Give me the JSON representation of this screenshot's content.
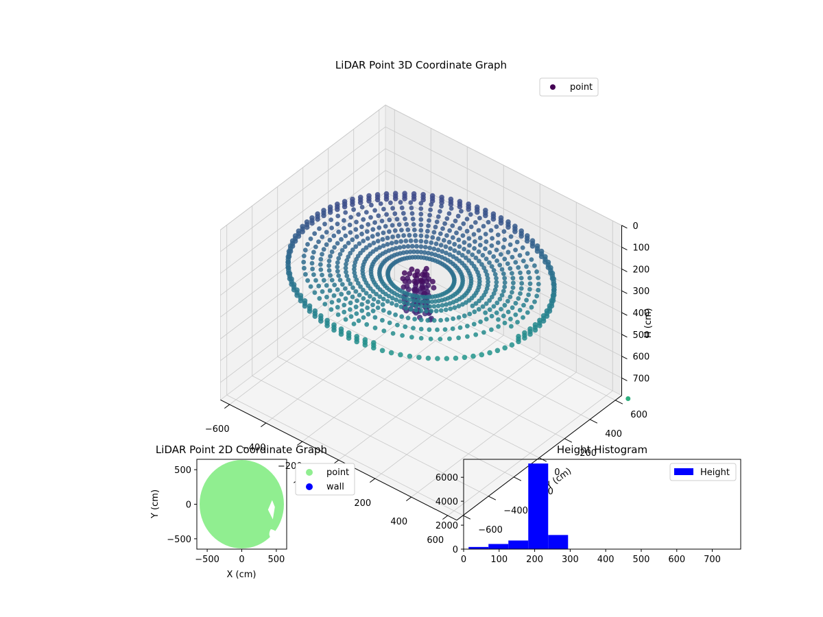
{
  "chart_data": [
    {
      "type": "scatter",
      "projection": "3d",
      "title": "LiDAR Point 3D Coordinate Graph",
      "xlabel": "X (cm)",
      "ylabel": "Y (cm)",
      "zlabel": "H (cm)",
      "xlim": [
        -650,
        650
      ],
      "ylim": [
        -650,
        650
      ],
      "zlim": [
        780,
        0
      ],
      "z_inverted": true,
      "xticks": [
        "−600",
        "−400",
        "−200",
        "0",
        "200",
        "400",
        "600"
      ],
      "yticks": [
        "−600",
        "−400",
        "−200",
        "0",
        "200",
        "400",
        "600"
      ],
      "zticks": [
        "0",
        "100",
        "200",
        "300",
        "400",
        "500",
        "600",
        "700"
      ],
      "colormap": "viridis",
      "legend": {
        "label": "point",
        "position": "top-right"
      },
      "grid": true,
      "shape": {
        "outer_wall_radius": 600,
        "wall_height_range": [
          210,
          240
        ],
        "floor_rings_radius_range": [
          150,
          560
        ],
        "central_object": {
          "x": 0,
          "y": 0,
          "height_range": [
            220,
            420
          ]
        },
        "open_sector": "front-right"
      }
    },
    {
      "type": "scatter",
      "title": "LiDAR Point 2D Coordinate Graph",
      "xlabel": "X (cm)",
      "ylabel": "Y (cm)",
      "xlim": [
        -650,
        650
      ],
      "ylim": [
        -650,
        650
      ],
      "xticks": [
        "−500",
        "0",
        "500"
      ],
      "yticks": [
        "−500",
        "0",
        "500"
      ],
      "series": [
        {
          "name": "point",
          "color": "#90ee90",
          "region": "filled disk radius ≈ 600 cm, cut off at x ≈ 640"
        },
        {
          "name": "wall",
          "color": "#0000ff",
          "count": 0
        }
      ],
      "legend": {
        "position": "outside-right"
      },
      "grid": false
    },
    {
      "type": "bar",
      "subtype": "histogram",
      "title": "Height Histogram",
      "xlabel": "",
      "ylabel": "",
      "bin_edges": [
        14,
        70,
        126,
        182,
        238,
        294,
        350,
        406,
        462,
        518,
        574,
        630,
        686,
        742
      ],
      "values": [
        180,
        430,
        720,
        7150,
        1180,
        0,
        0,
        0,
        0,
        0,
        0,
        0,
        0
      ],
      "xlim": [
        0,
        780
      ],
      "ylim": [
        0,
        7500
      ],
      "xticks": [
        0,
        100,
        200,
        300,
        400,
        500,
        600,
        700
      ],
      "yticks": [
        0,
        2000,
        4000,
        6000
      ],
      "color": "#0000ff",
      "legend": {
        "label": "Height",
        "position": "top-right"
      },
      "grid": false
    }
  ]
}
